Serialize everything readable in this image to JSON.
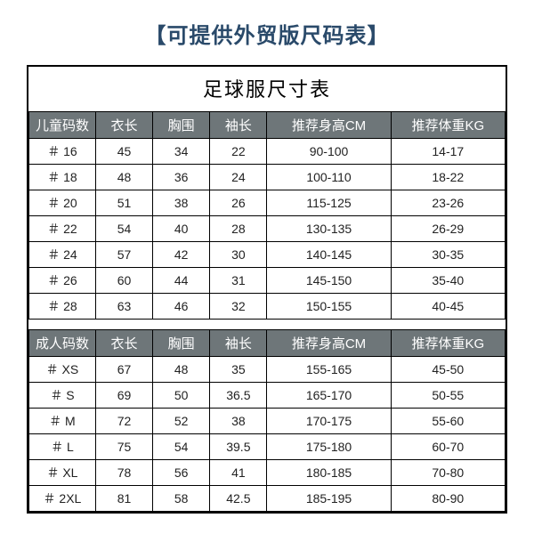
{
  "colors": {
    "banner_text": "#2a4a6a",
    "header_bg": "#6e7679",
    "header_text": "#ffffff",
    "border": "#000000",
    "cell_text": "#222222",
    "background": "#ffffff"
  },
  "banner": "【可提供外贸版尺码表】",
  "title": "足球服尺寸表",
  "columns_kids": [
    "儿童码数",
    "衣长",
    "胸围",
    "袖长",
    "推荐身高CM",
    "推荐体重KG"
  ],
  "columns_adult": [
    "成人码数",
    "衣长",
    "胸围",
    "袖长",
    "推荐身高CM",
    "推荐体重KG"
  ],
  "rows_kids": [
    [
      "＃ 16",
      "45",
      "34",
      "22",
      "90-100",
      "14-17"
    ],
    [
      "＃ 18",
      "48",
      "36",
      "24",
      "100-110",
      "18-22"
    ],
    [
      "＃ 20",
      "51",
      "38",
      "26",
      "115-125",
      "23-26"
    ],
    [
      "＃ 22",
      "54",
      "40",
      "28",
      "130-135",
      "26-29"
    ],
    [
      "＃ 24",
      "57",
      "42",
      "30",
      "140-145",
      "30-35"
    ],
    [
      "＃ 26",
      "60",
      "44",
      "31",
      "145-150",
      "35-40"
    ],
    [
      "＃ 28",
      "63",
      "46",
      "32",
      "150-155",
      "40-45"
    ]
  ],
  "rows_adult": [
    [
      "＃ XS",
      "67",
      "48",
      "35",
      "155-165",
      "45-50"
    ],
    [
      "＃ S",
      "69",
      "50",
      "36.5",
      "165-170",
      "50-55"
    ],
    [
      "＃ M",
      "72",
      "52",
      "38",
      "170-175",
      "55-60"
    ],
    [
      "＃ L",
      "75",
      "54",
      "39.5",
      "175-180",
      "60-70"
    ],
    [
      "＃ XL",
      "78",
      "56",
      "41",
      "180-185",
      "70-80"
    ],
    [
      "＃ 2XL",
      "81",
      "58",
      "42.5",
      "185-195",
      "80-90"
    ]
  ]
}
